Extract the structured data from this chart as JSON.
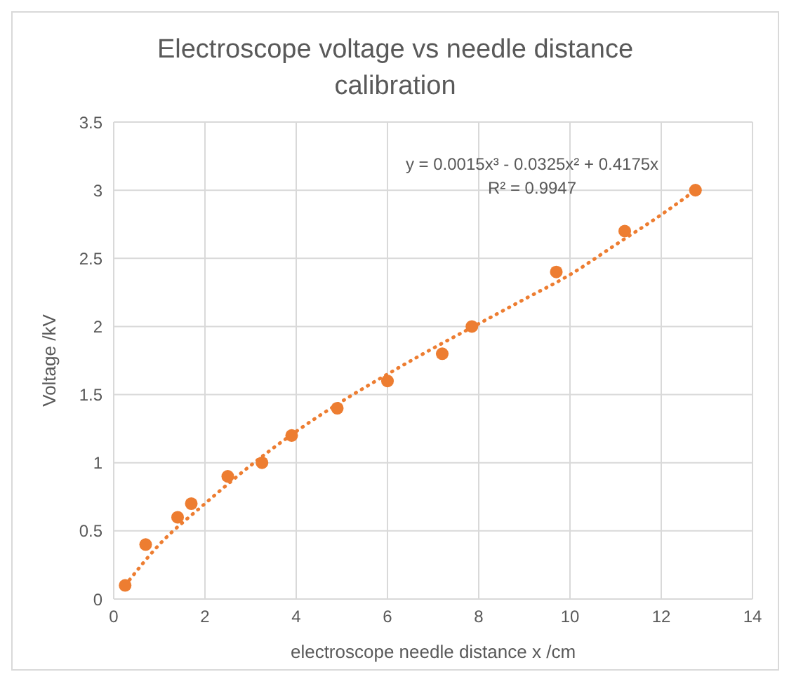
{
  "chart_data": {
    "type": "scatter",
    "title": "Electroscope voltage vs needle distance calibration",
    "xlabel": "electroscope needle distance x /cm",
    "ylabel": "Voltage /kV",
    "annotations": [
      "y = 0.0015x³ - 0.0325x² + 0.4175x",
      "R² = 0.9947"
    ],
    "xlim": [
      0,
      14
    ],
    "xticks": [
      0,
      2,
      4,
      6,
      8,
      10,
      12,
      14
    ],
    "ylim": [
      0,
      3.5
    ],
    "yticks": [
      0,
      0.5,
      1,
      1.5,
      2,
      2.5,
      3,
      3.5
    ],
    "grid": true,
    "legend": false,
    "x": [
      0.25,
      0.7,
      1.4,
      1.7,
      2.5,
      3.25,
      3.9,
      4.9,
      6.0,
      7.2,
      7.85,
      9.7,
      11.2,
      12.75
    ],
    "series": [
      {
        "color": "#ed7d31",
        "marker": "circle",
        "values": [
          0.1,
          0.4,
          0.6,
          0.7,
          0.9,
          1.0,
          1.2,
          1.4,
          1.6,
          1.8,
          2.0,
          2.4,
          2.7,
          3.0
        ]
      },
      {
        "type": "line",
        "color": "#ed7d31",
        "marker": "none",
        "line_style": "dotted",
        "x": [
          0.25,
          1,
          2,
          3,
          4,
          5,
          6,
          7,
          8,
          9,
          10,
          11,
          12,
          12.75
        ],
        "values": [
          0.1,
          0.4,
          0.7,
          0.98,
          1.23,
          1.45,
          1.65,
          1.84,
          2.02,
          2.2,
          2.38,
          2.6,
          2.82,
          3.0
        ]
      }
    ]
  }
}
